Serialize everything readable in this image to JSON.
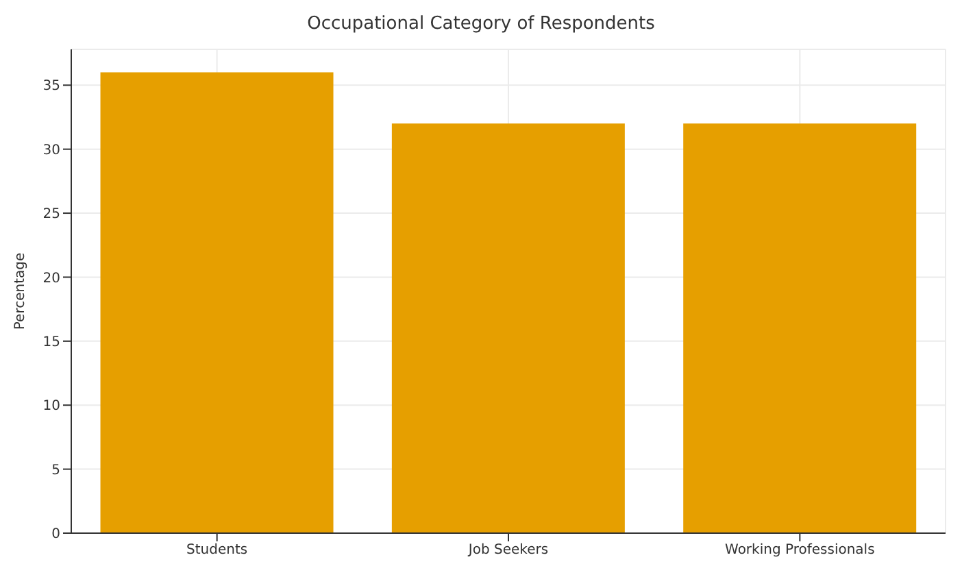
{
  "chart_data": {
    "type": "bar",
    "title": "Occupational Category of Respondents",
    "ylabel": "Percentage",
    "categories": [
      "Students",
      "Job Seekers",
      "Working Professionals"
    ],
    "values": [
      36,
      32,
      32
    ],
    "color": "#e69f00",
    "ylim": [
      0,
      37.8
    ],
    "yticks": [
      0,
      5,
      10,
      15,
      20,
      25,
      30,
      35
    ],
    "grid": true
  }
}
